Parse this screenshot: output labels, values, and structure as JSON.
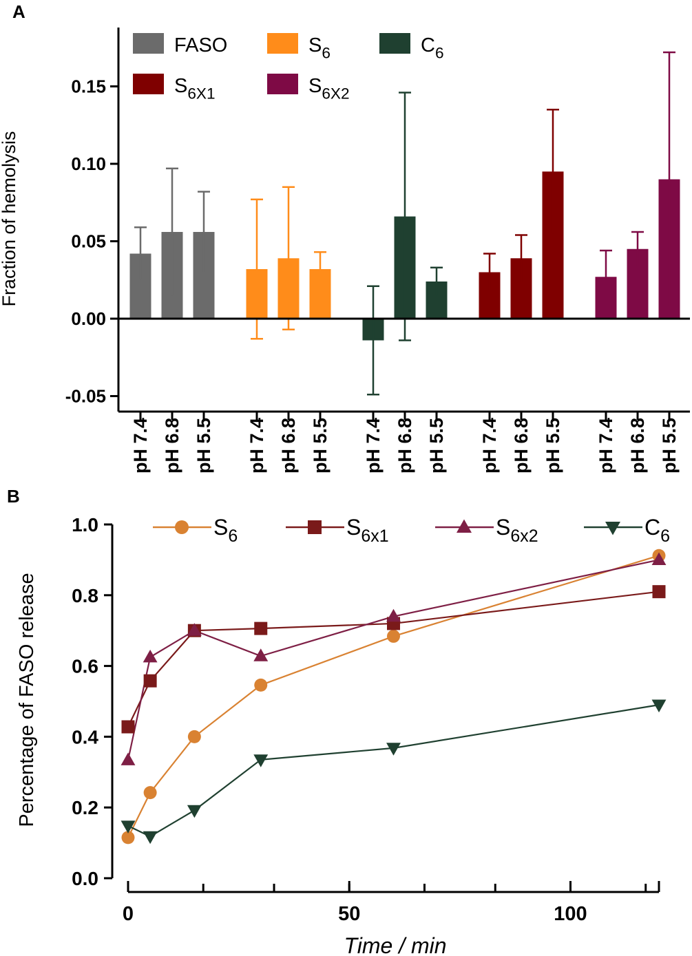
{
  "chart_data": [
    {
      "panel": "A",
      "type": "bar",
      "ylabel": "Fraction of hemolysis",
      "ylim": [
        -0.06,
        0.18
      ],
      "yticks": [
        "0.15",
        "0.10",
        "0.05",
        "0.00",
        "-0.05"
      ],
      "ytick_values": [
        0.15,
        0.1,
        0.05,
        0.0,
        -0.05
      ],
      "categories": [
        "pH 7.4",
        "pH 6.8",
        "pH 5.5"
      ],
      "legend": "top-left",
      "series": [
        {
          "name": "FASO",
          "label": {
            "base": "FASO",
            "sub": ""
          },
          "color": "#6b6b6b",
          "values": [
            0.042,
            0.056,
            0.056
          ],
          "errors": [
            0.017,
            0.041,
            0.026
          ]
        },
        {
          "name": "S6",
          "label": {
            "base": "S",
            "sub": "6"
          },
          "color": "#ff8c1a",
          "values": [
            0.032,
            0.039,
            0.032
          ],
          "errors": [
            0.045,
            0.046,
            0.011
          ]
        },
        {
          "name": "C6",
          "label": {
            "base": "C",
            "sub": "6"
          },
          "color": "#1f4030",
          "values": [
            -0.014,
            0.066,
            0.024
          ],
          "errors": [
            0.035,
            0.08,
            0.009
          ]
        },
        {
          "name": "S6X1",
          "label": {
            "base": "S",
            "sub": "6X1"
          },
          "color": "#7f0000",
          "values": [
            0.03,
            0.039,
            0.095
          ],
          "errors": [
            0.012,
            0.015,
            0.04
          ]
        },
        {
          "name": "S6X2",
          "label": {
            "base": "S",
            "sub": "6X2"
          },
          "color": "#7e0a45",
          "values": [
            0.027,
            0.045,
            0.09
          ],
          "errors": [
            0.017,
            0.011,
            0.082
          ]
        }
      ]
    },
    {
      "panel": "B",
      "type": "line",
      "xlabel": "Time / min",
      "ylabel": "Percentage of FASO release",
      "xlim": [
        0,
        120
      ],
      "ylim": [
        0,
        1.0
      ],
      "xticks": [
        "0",
        "50",
        "100"
      ],
      "xtick_values": [
        0,
        50,
        100
      ],
      "yticks": [
        "0.0",
        "0.2",
        "0.4",
        "0.6",
        "0.8",
        "1.0"
      ],
      "ytick_values": [
        0,
        0.2,
        0.4,
        0.6,
        0.8,
        1.0
      ],
      "x": [
        0,
        5,
        15,
        30,
        60,
        120
      ],
      "legend": "top",
      "series": [
        {
          "name": "S6",
          "label": {
            "base": "S",
            "sub": "6"
          },
          "color": "#d98232",
          "marker": "circle",
          "values": [
            0.115,
            0.242,
            0.4,
            0.546,
            0.684,
            0.912
          ]
        },
        {
          "name": "S6x1",
          "label": {
            "base": "S",
            "sub": "6x1"
          },
          "color": "#7a1a1a",
          "marker": "square",
          "values": [
            0.428,
            0.558,
            0.7,
            0.706,
            0.72,
            0.81
          ]
        },
        {
          "name": "S6x2",
          "label": {
            "base": "S",
            "sub": "6x2"
          },
          "color": "#7e1f45",
          "marker": "triangle-up",
          "values": [
            0.334,
            0.625,
            0.7,
            0.628,
            0.74,
            0.9
          ]
        },
        {
          "name": "C6",
          "label": {
            "base": "C",
            "sub": "6"
          },
          "color": "#1f4030",
          "marker": "triangle-down",
          "values": [
            0.148,
            0.118,
            0.192,
            0.335,
            0.368,
            0.49
          ]
        }
      ]
    }
  ]
}
